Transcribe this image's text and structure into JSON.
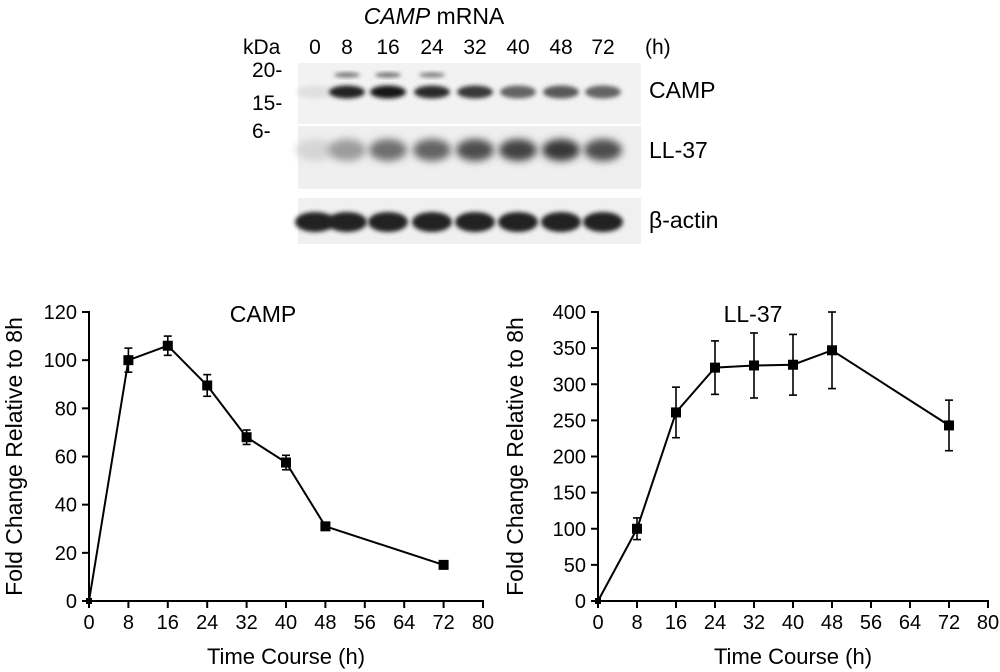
{
  "blot": {
    "header_italic": "CAMP",
    "header_rest": " mRNA",
    "unit_label": "kDa",
    "time_unit": "(h)",
    "lanes": [
      "0",
      "8",
      "16",
      "24",
      "32",
      "40",
      "48",
      "72"
    ],
    "markers": [
      "20-",
      "15-",
      "6-"
    ],
    "bands": [
      "CAMP",
      "LL-37",
      "β-actin"
    ],
    "camp_band_intensity": [
      0.05,
      0.9,
      0.95,
      0.85,
      0.8,
      0.6,
      0.65,
      0.6
    ],
    "ll37_band_intensity": [
      0.1,
      0.35,
      0.55,
      0.6,
      0.7,
      0.75,
      0.8,
      0.7
    ],
    "actin_band_intensity": [
      0.9,
      0.9,
      0.9,
      0.9,
      0.9,
      0.9,
      0.9,
      0.9
    ]
  },
  "chart_data": [
    {
      "type": "line",
      "title": "CAMP",
      "xlabel": "Time Course (h)",
      "ylabel": "Fold Change Relative to 8h",
      "x": [
        0,
        8,
        16,
        24,
        32,
        40,
        48,
        72
      ],
      "y": [
        0,
        100,
        106,
        89.5,
        68,
        57.5,
        31,
        15
      ],
      "error": [
        0,
        5,
        4,
        4.5,
        3,
        3,
        1.5,
        1.5
      ],
      "xlim": [
        0,
        80
      ],
      "ylim": [
        0,
        120
      ],
      "xticks": [
        "0",
        "8",
        "16",
        "24",
        "32",
        "40",
        "48",
        "56",
        "64",
        "72",
        "80"
      ],
      "yticks": [
        "0",
        "20",
        "40",
        "60",
        "80",
        "100",
        "120"
      ],
      "grid": false
    },
    {
      "type": "line",
      "title": "LL-37",
      "xlabel": "Time Course (h)",
      "ylabel": "Fold Change Relative to 8h",
      "x": [
        0,
        8,
        16,
        24,
        32,
        40,
        48,
        72
      ],
      "y": [
        0,
        100,
        261,
        323,
        326,
        327,
        347,
        243
      ],
      "error": [
        0,
        15,
        35,
        37,
        45,
        42,
        53,
        35
      ],
      "xlim": [
        0,
        80
      ],
      "ylim": [
        0,
        400
      ],
      "xticks": [
        "0",
        "8",
        "16",
        "24",
        "32",
        "40",
        "48",
        "56",
        "64",
        "72",
        "80"
      ],
      "yticks": [
        "0",
        "50",
        "100",
        "150",
        "200",
        "250",
        "300",
        "350",
        "400"
      ],
      "grid": false
    }
  ]
}
